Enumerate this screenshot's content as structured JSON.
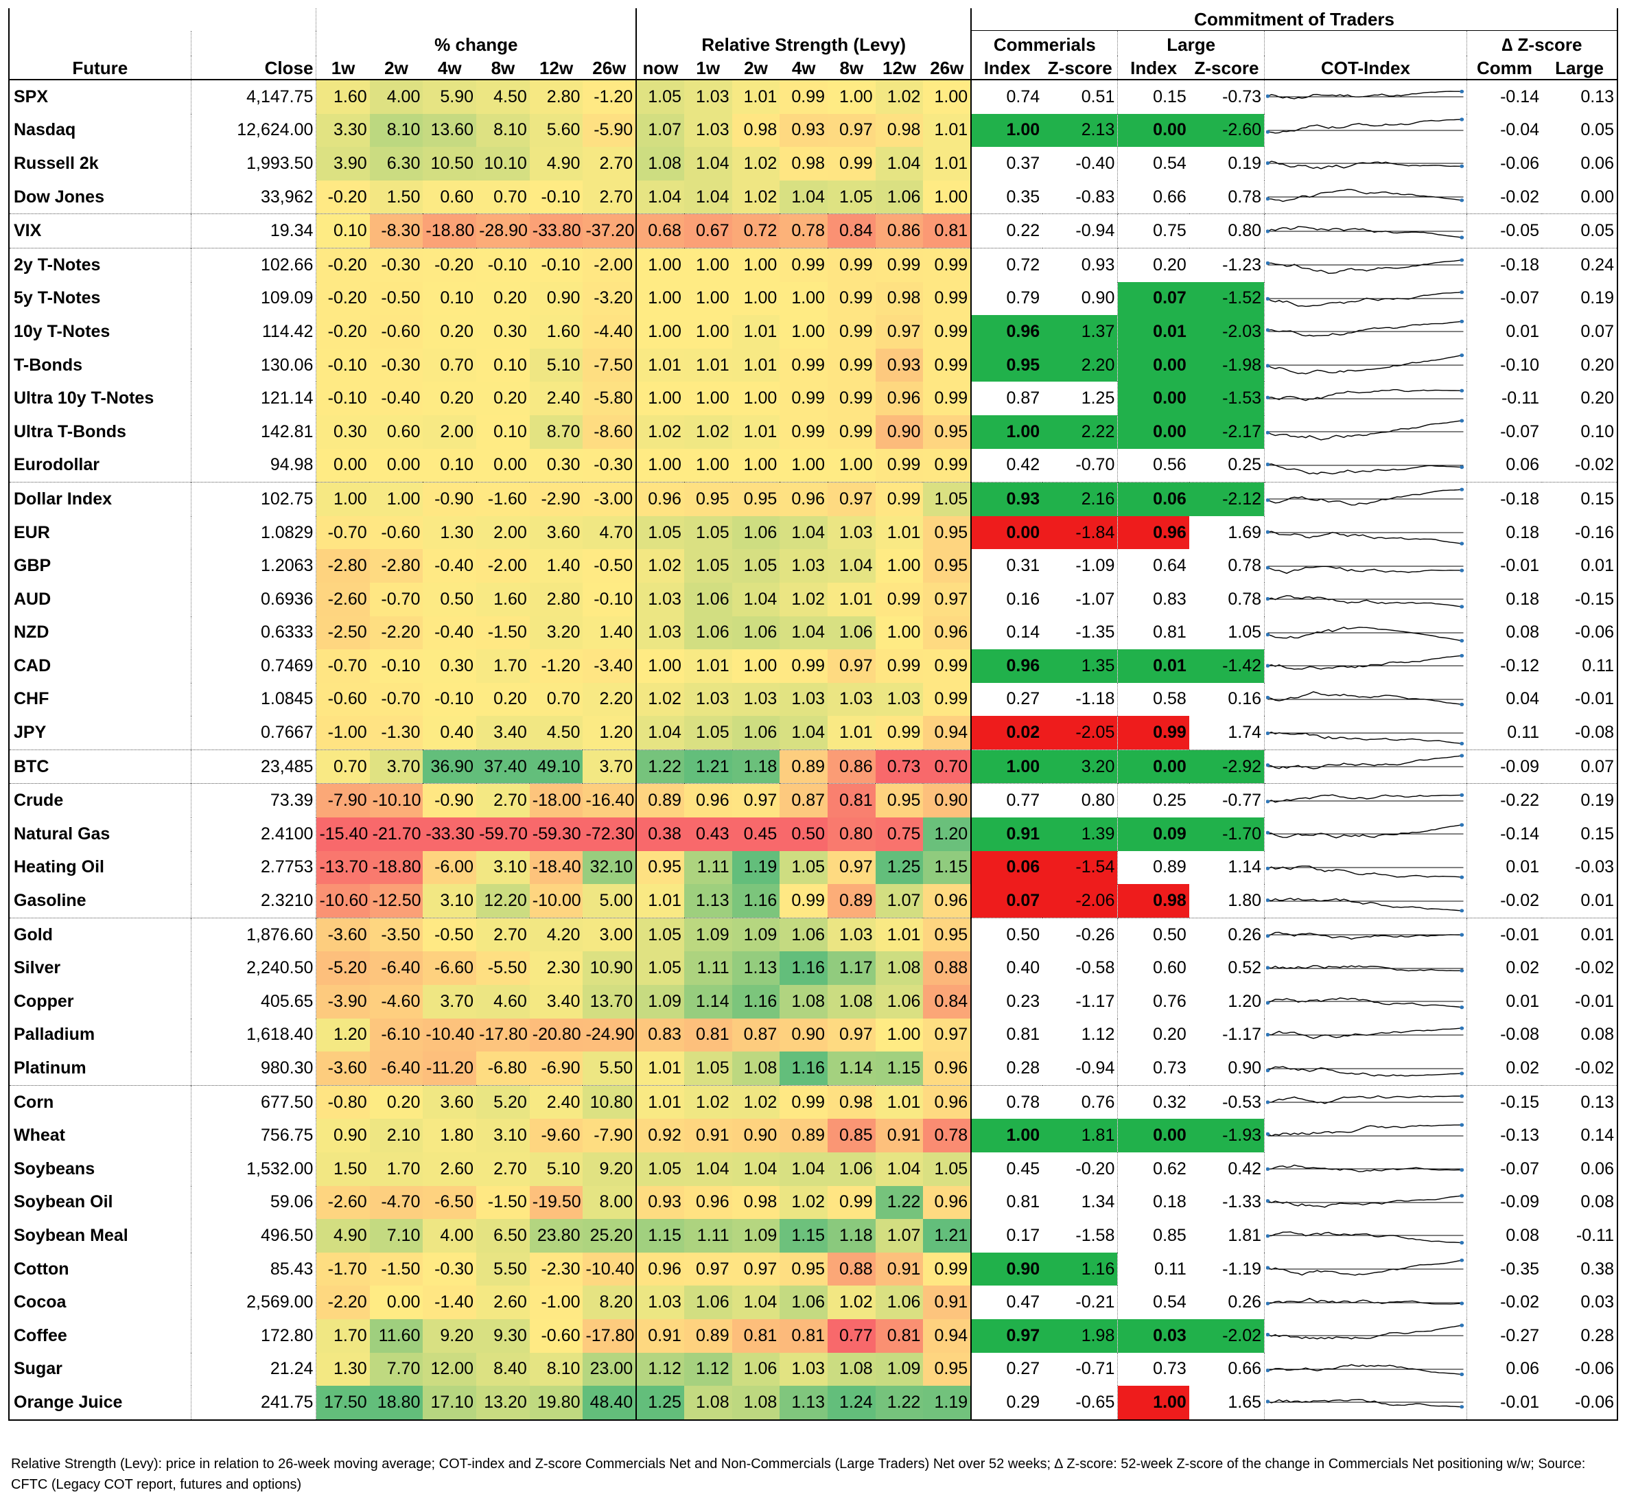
{
  "header": {
    "future": "Future",
    "close": "Close",
    "pct_change": "% change",
    "rel_strength": "Relative Strength (Levy)",
    "cot": "Commitment of Traders",
    "commercials": "Commerials",
    "large": "Large",
    "cot_index": "COT-Index",
    "dz": "∆ Z-score",
    "pct_cols": [
      "1w",
      "2w",
      "4w",
      "8w",
      "12w",
      "26w"
    ],
    "rs_cols": [
      "now",
      "1w",
      "2w",
      "4w",
      "8w",
      "12w",
      "26w"
    ],
    "index": "Index",
    "zscore": "Z-score",
    "comm": "Comm",
    "large_short": "Large"
  },
  "rows": [
    {
      "name": "SPX",
      "close": "4,147.75",
      "pct": [
        "1.60",
        "4.00",
        "5.90",
        "4.50",
        "2.80",
        "-1.20"
      ],
      "rs": [
        "1.05",
        "1.03",
        "1.01",
        "0.99",
        "1.00",
        "1.02",
        "1.00"
      ],
      "ci": "0.74",
      "cz": "0.51",
      "li": "0.15",
      "lz": "-0.73",
      "dc": "-0.14",
      "dl": "0.13"
    },
    {
      "name": "Nasdaq",
      "close": "12,624.00",
      "pct": [
        "3.30",
        "8.10",
        "13.60",
        "8.10",
        "5.60",
        "-5.90"
      ],
      "rs": [
        "1.07",
        "1.03",
        "0.98",
        "0.93",
        "0.97",
        "0.98",
        "1.01"
      ],
      "ci": "1.00",
      "cz": "2.13",
      "li": "0.00",
      "lz": "-2.60",
      "dc": "-0.04",
      "dl": "0.05"
    },
    {
      "name": "Russell 2k",
      "close": "1,993.50",
      "pct": [
        "3.90",
        "6.30",
        "10.50",
        "10.10",
        "4.90",
        "2.70"
      ],
      "rs": [
        "1.08",
        "1.04",
        "1.02",
        "0.98",
        "0.99",
        "1.04",
        "1.01"
      ],
      "ci": "0.37",
      "cz": "-0.40",
      "li": "0.54",
      "lz": "0.19",
      "dc": "-0.06",
      "dl": "0.06"
    },
    {
      "name": "Dow Jones",
      "close": "33,962",
      "pct": [
        "-0.20",
        "1.50",
        "0.60",
        "0.70",
        "-0.10",
        "2.70"
      ],
      "rs": [
        "1.04",
        "1.04",
        "1.02",
        "1.04",
        "1.05",
        "1.06",
        "1.00"
      ],
      "ci": "0.35",
      "cz": "-0.83",
      "li": "0.66",
      "lz": "0.78",
      "dc": "-0.02",
      "dl": "0.00"
    },
    {
      "name": "VIX",
      "close": "19.34",
      "pct": [
        "0.10",
        "-8.30",
        "-18.80",
        "-28.90",
        "-33.80",
        "-37.20"
      ],
      "rs": [
        "0.68",
        "0.67",
        "0.72",
        "0.78",
        "0.84",
        "0.86",
        "0.81"
      ],
      "ci": "0.22",
      "cz": "-0.94",
      "li": "0.75",
      "lz": "0.80",
      "dc": "-0.05",
      "dl": "0.05"
    },
    {
      "name": "2y T-Notes",
      "close": "102.66",
      "pct": [
        "-0.20",
        "-0.30",
        "-0.20",
        "-0.10",
        "-0.10",
        "-2.00"
      ],
      "rs": [
        "1.00",
        "1.00",
        "1.00",
        "0.99",
        "0.99",
        "0.99",
        "0.99"
      ],
      "ci": "0.72",
      "cz": "0.93",
      "li": "0.20",
      "lz": "-1.23",
      "dc": "-0.18",
      "dl": "0.24"
    },
    {
      "name": "5y T-Notes",
      "close": "109.09",
      "pct": [
        "-0.20",
        "-0.50",
        "0.10",
        "0.20",
        "0.90",
        "-3.20"
      ],
      "rs": [
        "1.00",
        "1.00",
        "1.00",
        "1.00",
        "0.99",
        "0.98",
        "0.99"
      ],
      "ci": "0.79",
      "cz": "0.90",
      "li": "0.07",
      "lz": "-1.52",
      "dc": "-0.07",
      "dl": "0.19"
    },
    {
      "name": "10y T-Notes",
      "close": "114.42",
      "pct": [
        "-0.20",
        "-0.60",
        "0.20",
        "0.30",
        "1.60",
        "-4.40"
      ],
      "rs": [
        "1.00",
        "1.00",
        "1.01",
        "1.00",
        "0.99",
        "0.97",
        "0.99"
      ],
      "ci": "0.96",
      "cz": "1.37",
      "li": "0.01",
      "lz": "-2.03",
      "dc": "0.01",
      "dl": "0.07"
    },
    {
      "name": "T-Bonds",
      "close": "130.06",
      "pct": [
        "-0.10",
        "-0.30",
        "0.70",
        "0.10",
        "5.10",
        "-7.50"
      ],
      "rs": [
        "1.01",
        "1.01",
        "1.01",
        "0.99",
        "0.99",
        "0.93",
        "0.99"
      ],
      "ci": "0.95",
      "cz": "2.20",
      "li": "0.00",
      "lz": "-1.98",
      "dc": "-0.10",
      "dl": "0.20"
    },
    {
      "name": "Ultra 10y T-Notes",
      "close": "121.14",
      "pct": [
        "-0.10",
        "-0.40",
        "0.20",
        "0.20",
        "2.40",
        "-5.80"
      ],
      "rs": [
        "1.00",
        "1.00",
        "1.00",
        "0.99",
        "0.99",
        "0.96",
        "0.99"
      ],
      "ci": "0.87",
      "cz": "1.25",
      "li": "0.00",
      "lz": "-1.53",
      "dc": "-0.11",
      "dl": "0.20"
    },
    {
      "name": "Ultra T-Bonds",
      "close": "142.81",
      "pct": [
        "0.30",
        "0.60",
        "2.00",
        "0.10",
        "8.70",
        "-8.60"
      ],
      "rs": [
        "1.02",
        "1.02",
        "1.01",
        "0.99",
        "0.99",
        "0.90",
        "0.95"
      ],
      "ci": "1.00",
      "cz": "2.22",
      "li": "0.00",
      "lz": "-2.17",
      "dc": "-0.07",
      "dl": "0.10"
    },
    {
      "name": "Eurodollar",
      "close": "94.98",
      "pct": [
        "0.00",
        "0.00",
        "0.10",
        "0.00",
        "0.30",
        "-0.30"
      ],
      "rs": [
        "1.00",
        "1.00",
        "1.00",
        "1.00",
        "1.00",
        "0.99",
        "0.99"
      ],
      "ci": "0.42",
      "cz": "-0.70",
      "li": "0.56",
      "lz": "0.25",
      "dc": "0.06",
      "dl": "-0.02"
    },
    {
      "name": "Dollar Index",
      "close": "102.75",
      "pct": [
        "1.00",
        "1.00",
        "-0.90",
        "-1.60",
        "-2.90",
        "-3.00"
      ],
      "rs": [
        "0.96",
        "0.95",
        "0.95",
        "0.96",
        "0.97",
        "0.99",
        "1.05"
      ],
      "ci": "0.93",
      "cz": "2.16",
      "li": "0.06",
      "lz": "-2.12",
      "dc": "-0.18",
      "dl": "0.15"
    },
    {
      "name": "EUR",
      "close": "1.0829",
      "pct": [
        "-0.70",
        "-0.60",
        "1.30",
        "2.00",
        "3.60",
        "4.70"
      ],
      "rs": [
        "1.05",
        "1.05",
        "1.06",
        "1.04",
        "1.03",
        "1.01",
        "0.95"
      ],
      "ci": "0.00",
      "cz": "-1.84",
      "li": "0.96",
      "lz": "1.69",
      "dc": "0.18",
      "dl": "-0.16"
    },
    {
      "name": "GBP",
      "close": "1.2063",
      "pct": [
        "-2.80",
        "-2.80",
        "-0.40",
        "-2.00",
        "1.40",
        "-0.50"
      ],
      "rs": [
        "1.02",
        "1.05",
        "1.05",
        "1.03",
        "1.04",
        "1.00",
        "0.95"
      ],
      "ci": "0.31",
      "cz": "-1.09",
      "li": "0.64",
      "lz": "0.78",
      "dc": "-0.01",
      "dl": "0.01"
    },
    {
      "name": "AUD",
      "close": "0.6936",
      "pct": [
        "-2.60",
        "-0.70",
        "0.50",
        "1.60",
        "2.80",
        "-0.10"
      ],
      "rs": [
        "1.03",
        "1.06",
        "1.04",
        "1.02",
        "1.01",
        "0.99",
        "0.97"
      ],
      "ci": "0.16",
      "cz": "-1.07",
      "li": "0.83",
      "lz": "0.78",
      "dc": "0.18",
      "dl": "-0.15"
    },
    {
      "name": "NZD",
      "close": "0.6333",
      "pct": [
        "-2.50",
        "-2.20",
        "-0.40",
        "-1.50",
        "3.20",
        "1.40"
      ],
      "rs": [
        "1.03",
        "1.06",
        "1.06",
        "1.04",
        "1.06",
        "1.00",
        "0.96"
      ],
      "ci": "0.14",
      "cz": "-1.35",
      "li": "0.81",
      "lz": "1.05",
      "dc": "0.08",
      "dl": "-0.06"
    },
    {
      "name": "CAD",
      "close": "0.7469",
      "pct": [
        "-0.70",
        "-0.10",
        "0.30",
        "1.70",
        "-1.20",
        "-3.40"
      ],
      "rs": [
        "1.00",
        "1.01",
        "1.00",
        "0.99",
        "0.97",
        "0.99",
        "0.99"
      ],
      "ci": "0.96",
      "cz": "1.35",
      "li": "0.01",
      "lz": "-1.42",
      "dc": "-0.12",
      "dl": "0.11"
    },
    {
      "name": "CHF",
      "close": "1.0845",
      "pct": [
        "-0.60",
        "-0.70",
        "-0.10",
        "0.20",
        "0.70",
        "2.20"
      ],
      "rs": [
        "1.02",
        "1.03",
        "1.03",
        "1.03",
        "1.03",
        "1.03",
        "0.99"
      ],
      "ci": "0.27",
      "cz": "-1.18",
      "li": "0.58",
      "lz": "0.16",
      "dc": "0.04",
      "dl": "-0.01"
    },
    {
      "name": "JPY",
      "close": "0.7667",
      "pct": [
        "-1.00",
        "-1.30",
        "0.40",
        "3.40",
        "4.50",
        "1.20"
      ],
      "rs": [
        "1.04",
        "1.05",
        "1.06",
        "1.04",
        "1.01",
        "0.99",
        "0.94"
      ],
      "ci": "0.02",
      "cz": "-2.05",
      "li": "0.99",
      "lz": "1.74",
      "dc": "0.11",
      "dl": "-0.08"
    },
    {
      "name": "BTC",
      "close": "23,485",
      "pct": [
        "0.70",
        "3.70",
        "36.90",
        "37.40",
        "49.10",
        "3.70"
      ],
      "rs": [
        "1.22",
        "1.21",
        "1.18",
        "0.89",
        "0.86",
        "0.73",
        "0.70"
      ],
      "ci": "1.00",
      "cz": "3.20",
      "li": "0.00",
      "lz": "-2.92",
      "dc": "-0.09",
      "dl": "0.07"
    },
    {
      "name": "Crude",
      "close": "73.39",
      "pct": [
        "-7.90",
        "-10.10",
        "-0.90",
        "2.70",
        "-18.00",
        "-16.40"
      ],
      "rs": [
        "0.89",
        "0.96",
        "0.97",
        "0.87",
        "0.81",
        "0.95",
        "0.90"
      ],
      "ci": "0.77",
      "cz": "0.80",
      "li": "0.25",
      "lz": "-0.77",
      "dc": "-0.22",
      "dl": "0.19"
    },
    {
      "name": "Natural Gas",
      "close": "2.4100",
      "pct": [
        "-15.40",
        "-21.70",
        "-33.30",
        "-59.70",
        "-59.30",
        "-72.30"
      ],
      "rs": [
        "0.38",
        "0.43",
        "0.45",
        "0.50",
        "0.80",
        "0.75",
        "1.20"
      ],
      "ci": "0.91",
      "cz": "1.39",
      "li": "0.09",
      "lz": "-1.70",
      "dc": "-0.14",
      "dl": "0.15"
    },
    {
      "name": "Heating Oil",
      "close": "2.7753",
      "pct": [
        "-13.70",
        "-18.80",
        "-6.00",
        "3.10",
        "-18.40",
        "32.10"
      ],
      "rs": [
        "0.95",
        "1.11",
        "1.19",
        "1.05",
        "0.97",
        "1.25",
        "1.15"
      ],
      "ci": "0.06",
      "cz": "-1.54",
      "li": "0.89",
      "lz": "1.14",
      "dc": "0.01",
      "dl": "-0.03"
    },
    {
      "name": "Gasoline",
      "close": "2.3210",
      "pct": [
        "-10.60",
        "-12.50",
        "3.10",
        "12.20",
        "-10.00",
        "5.00"
      ],
      "rs": [
        "1.01",
        "1.13",
        "1.16",
        "0.99",
        "0.89",
        "1.07",
        "0.96"
      ],
      "ci": "0.07",
      "cz": "-2.06",
      "li": "0.98",
      "lz": "1.80",
      "dc": "-0.02",
      "dl": "0.01"
    },
    {
      "name": "Gold",
      "close": "1,876.60",
      "pct": [
        "-3.60",
        "-3.50",
        "-0.50",
        "2.70",
        "4.20",
        "3.00"
      ],
      "rs": [
        "1.05",
        "1.09",
        "1.09",
        "1.06",
        "1.03",
        "1.01",
        "0.95"
      ],
      "ci": "0.50",
      "cz": "-0.26",
      "li": "0.50",
      "lz": "0.26",
      "dc": "-0.01",
      "dl": "0.01"
    },
    {
      "name": "Silver",
      "close": "2,240.50",
      "pct": [
        "-5.20",
        "-6.40",
        "-6.60",
        "-5.50",
        "2.30",
        "10.90"
      ],
      "rs": [
        "1.05",
        "1.11",
        "1.13",
        "1.16",
        "1.17",
        "1.08",
        "0.88"
      ],
      "ci": "0.40",
      "cz": "-0.58",
      "li": "0.60",
      "lz": "0.52",
      "dc": "0.02",
      "dl": "-0.02"
    },
    {
      "name": "Copper",
      "close": "405.65",
      "pct": [
        "-3.90",
        "-4.60",
        "3.70",
        "4.60",
        "3.40",
        "13.70"
      ],
      "rs": [
        "1.09",
        "1.14",
        "1.16",
        "1.08",
        "1.08",
        "1.06",
        "0.84"
      ],
      "ci": "0.23",
      "cz": "-1.17",
      "li": "0.76",
      "lz": "1.20",
      "dc": "0.01",
      "dl": "-0.01"
    },
    {
      "name": "Palladium",
      "close": "1,618.40",
      "pct": [
        "1.20",
        "-6.10",
        "-10.40",
        "-17.80",
        "-20.80",
        "-24.90"
      ],
      "rs": [
        "0.83",
        "0.81",
        "0.87",
        "0.90",
        "0.97",
        "1.00",
        "0.97"
      ],
      "ci": "0.81",
      "cz": "1.12",
      "li": "0.20",
      "lz": "-1.17",
      "dc": "-0.08",
      "dl": "0.08"
    },
    {
      "name": "Platinum",
      "close": "980.30",
      "pct": [
        "-3.60",
        "-6.40",
        "-11.20",
        "-6.80",
        "-6.90",
        "5.50"
      ],
      "rs": [
        "1.01",
        "1.05",
        "1.08",
        "1.16",
        "1.14",
        "1.15",
        "0.96"
      ],
      "ci": "0.28",
      "cz": "-0.94",
      "li": "0.73",
      "lz": "0.90",
      "dc": "0.02",
      "dl": "-0.02"
    },
    {
      "name": "Corn",
      "close": "677.50",
      "pct": [
        "-0.80",
        "0.20",
        "3.60",
        "5.20",
        "2.40",
        "10.80"
      ],
      "rs": [
        "1.01",
        "1.02",
        "1.02",
        "0.99",
        "0.98",
        "1.01",
        "0.96"
      ],
      "ci": "0.78",
      "cz": "0.76",
      "li": "0.32",
      "lz": "-0.53",
      "dc": "-0.15",
      "dl": "0.13"
    },
    {
      "name": "Wheat",
      "close": "756.75",
      "pct": [
        "0.90",
        "2.10",
        "1.80",
        "3.10",
        "-9.60",
        "-7.90"
      ],
      "rs": [
        "0.92",
        "0.91",
        "0.90",
        "0.89",
        "0.85",
        "0.91",
        "0.78"
      ],
      "ci": "1.00",
      "cz": "1.81",
      "li": "0.00",
      "lz": "-1.93",
      "dc": "-0.13",
      "dl": "0.14"
    },
    {
      "name": "Soybeans",
      "close": "1,532.00",
      "pct": [
        "1.50",
        "1.70",
        "2.60",
        "2.70",
        "5.10",
        "9.20"
      ],
      "rs": [
        "1.05",
        "1.04",
        "1.04",
        "1.04",
        "1.06",
        "1.04",
        "1.05"
      ],
      "ci": "0.45",
      "cz": "-0.20",
      "li": "0.62",
      "lz": "0.42",
      "dc": "-0.07",
      "dl": "0.06"
    },
    {
      "name": "Soybean Oil",
      "close": "59.06",
      "pct": [
        "-2.60",
        "-4.70",
        "-6.50",
        "-1.50",
        "-19.50",
        "8.00"
      ],
      "rs": [
        "0.93",
        "0.96",
        "0.98",
        "1.02",
        "0.99",
        "1.22",
        "0.96"
      ],
      "ci": "0.81",
      "cz": "1.34",
      "li": "0.18",
      "lz": "-1.33",
      "dc": "-0.09",
      "dl": "0.08"
    },
    {
      "name": "Soybean Meal",
      "close": "496.50",
      "pct": [
        "4.90",
        "7.10",
        "4.00",
        "6.50",
        "23.80",
        "25.20"
      ],
      "rs": [
        "1.15",
        "1.11",
        "1.09",
        "1.15",
        "1.18",
        "1.07",
        "1.21"
      ],
      "ci": "0.17",
      "cz": "-1.58",
      "li": "0.85",
      "lz": "1.81",
      "dc": "0.08",
      "dl": "-0.11"
    },
    {
      "name": "Cotton",
      "close": "85.43",
      "pct": [
        "-1.70",
        "-1.50",
        "-0.30",
        "5.50",
        "-2.30",
        "-10.40"
      ],
      "rs": [
        "0.96",
        "0.97",
        "0.97",
        "0.95",
        "0.88",
        "0.91",
        "0.99"
      ],
      "ci": "0.90",
      "cz": "1.16",
      "li": "0.11",
      "lz": "-1.19",
      "dc": "-0.35",
      "dl": "0.38"
    },
    {
      "name": "Cocoa",
      "close": "2,569.00",
      "pct": [
        "-2.20",
        "0.00",
        "-1.40",
        "2.60",
        "-1.00",
        "8.20"
      ],
      "rs": [
        "1.03",
        "1.06",
        "1.04",
        "1.06",
        "1.02",
        "1.06",
        "0.91"
      ],
      "ci": "0.47",
      "cz": "-0.21",
      "li": "0.54",
      "lz": "0.26",
      "dc": "-0.02",
      "dl": "0.03"
    },
    {
      "name": "Coffee",
      "close": "172.80",
      "pct": [
        "1.70",
        "11.60",
        "9.20",
        "9.30",
        "-0.60",
        "-17.80"
      ],
      "rs": [
        "0.91",
        "0.89",
        "0.81",
        "0.81",
        "0.77",
        "0.81",
        "0.94"
      ],
      "ci": "0.97",
      "cz": "1.98",
      "li": "0.03",
      "lz": "-2.02",
      "dc": "-0.27",
      "dl": "0.28"
    },
    {
      "name": "Sugar",
      "close": "21.24",
      "pct": [
        "1.30",
        "7.70",
        "12.00",
        "8.40",
        "8.10",
        "23.00"
      ],
      "rs": [
        "1.12",
        "1.12",
        "1.06",
        "1.03",
        "1.08",
        "1.09",
        "0.95"
      ],
      "ci": "0.27",
      "cz": "-0.71",
      "li": "0.73",
      "lz": "0.66",
      "dc": "0.06",
      "dl": "-0.06"
    },
    {
      "name": "Orange Juice",
      "close": "241.75",
      "pct": [
        "17.50",
        "18.80",
        "17.10",
        "13.20",
        "19.80",
        "48.40"
      ],
      "rs": [
        "1.25",
        "1.08",
        "1.08",
        "1.13",
        "1.24",
        "1.22",
        "1.19"
      ],
      "ci": "0.29",
      "cz": "-0.65",
      "li": "1.00",
      "lz": "1.65",
      "dc": "-0.01",
      "dl": "-0.06"
    }
  ],
  "group_starts": [
    4,
    5,
    12,
    20,
    21,
    25,
    30
  ],
  "highlights": {
    "1": {
      "c": "green",
      "l": "green"
    },
    "6": {
      "l": "green"
    },
    "7": {
      "c": "green",
      "l": "green"
    },
    "8": {
      "c": "green",
      "l": "green"
    },
    "9": {
      "l": "green"
    },
    "10": {
      "c": "green",
      "l": "green"
    },
    "12": {
      "c": "green",
      "l": "green"
    },
    "13": {
      "c": "red",
      "l": "red"
    },
    "17": {
      "c": "green",
      "l": "green"
    },
    "19": {
      "c": "red",
      "l": "red"
    },
    "20": {
      "c": "green",
      "l": "green"
    },
    "22": {
      "c": "green",
      "l": "green"
    },
    "23": {
      "c": "red"
    },
    "24": {
      "c": "red",
      "l": "red"
    },
    "31": {
      "c": "green",
      "l": "green"
    },
    "35": {
      "c": "green"
    },
    "37": {
      "c": "green",
      "l": "green"
    },
    "39": {
      "l": "red"
    }
  },
  "colors": {
    "hl_green": "#21b14b",
    "hl_red": "#ee1c1c",
    "heat_low": "#f8696b",
    "heat_mid": "#ffeb84",
    "heat_high": "#63be7b",
    "spark_line": "#000000",
    "spark_dot": "#2e75b6"
  },
  "footnote": "Relative Strength (Levy): price in relation to 26-week moving average; COT-index and Z-score Commercials Net and Non-Commercials (Large Traders) Net over 52 weeks; ∆ Z-score: 52-week Z-score of the change in Commercials Net positioning w/w; Source: CFTC (Legacy COT report, futures and options)"
}
